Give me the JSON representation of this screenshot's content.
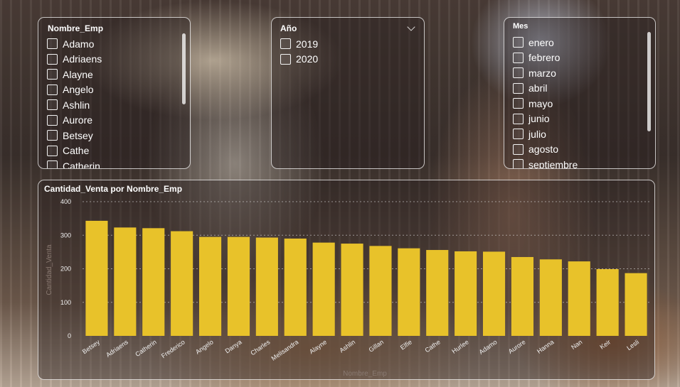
{
  "slicer_emp": {
    "title": "Nombre_Emp",
    "items": [
      "Adamo",
      "Adriaens",
      "Alayne",
      "Angelo",
      "Ashlin",
      "Aurore",
      "Betsey",
      "Cathe",
      "Catherin"
    ]
  },
  "slicer_year": {
    "title": "Año",
    "items": [
      "2019",
      "2020"
    ]
  },
  "slicer_month": {
    "title": "Mes",
    "items": [
      "enero",
      "febrero",
      "marzo",
      "abril",
      "mayo",
      "junio",
      "julio",
      "agosto",
      "septiembre"
    ]
  },
  "chart_data": {
    "type": "bar",
    "title": "Cantidad_Venta por Nombre_Emp",
    "xlabel": "Nombre_Emp",
    "ylabel": "Cantidad_Venta",
    "ylim": [
      0,
      400
    ],
    "yticks": [
      0,
      100,
      200,
      300,
      400
    ],
    "grid": true,
    "bar_color": "#e8c22a",
    "categories": [
      "Betsey",
      "Adriaens",
      "Catherin",
      "Frederico",
      "Angelo",
      "Danya",
      "Charles",
      "Melisandra",
      "Alayne",
      "Ashlin",
      "Gillan",
      "Elfie",
      "Cathe",
      "Hurlee",
      "Adamo",
      "Aurore",
      "Hanna",
      "Nan",
      "Keir",
      "Lesli"
    ],
    "values": [
      343,
      323,
      321,
      312,
      295,
      295,
      293,
      290,
      278,
      275,
      268,
      261,
      256,
      252,
      251,
      235,
      228,
      222,
      199,
      187
    ]
  }
}
